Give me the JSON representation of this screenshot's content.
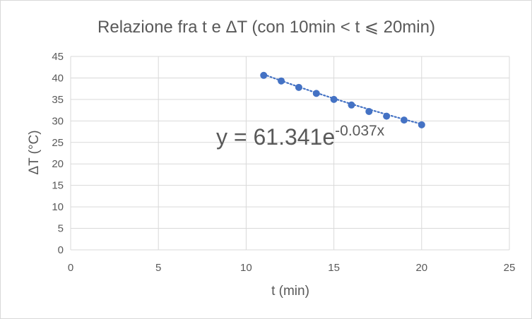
{
  "chart_data": {
    "type": "scatter",
    "title": "Relazione fra t e ΔT (con 10min < t ⩽ 20min)",
    "xlabel": "t (min)",
    "ylabel": "ΔT  (°C)",
    "xlim": [
      0,
      25
    ],
    "ylim": [
      0,
      45
    ],
    "x_ticks": [
      0,
      5,
      10,
      15,
      20,
      25
    ],
    "y_ticks": [
      0,
      5,
      10,
      15,
      20,
      25,
      30,
      35,
      40,
      45
    ],
    "grid": true,
    "legend": "none",
    "series": [
      {
        "x": [
          11,
          12,
          13,
          14,
          15,
          16,
          17,
          18,
          19,
          20
        ],
        "y": [
          40.6,
          39.3,
          37.8,
          36.4,
          35.0,
          33.7,
          32.2,
          31.1,
          30.2,
          29.1
        ],
        "color": "#4472c4"
      }
    ],
    "trendline": {
      "kind": "exponential",
      "a": 61.341,
      "b": -0.037,
      "x_from": 11,
      "x_to": 20,
      "style": "dotted",
      "color": "#4472c4",
      "equation_main": "y = 61.341e",
      "equation_exponent": "-0.037x"
    }
  }
}
